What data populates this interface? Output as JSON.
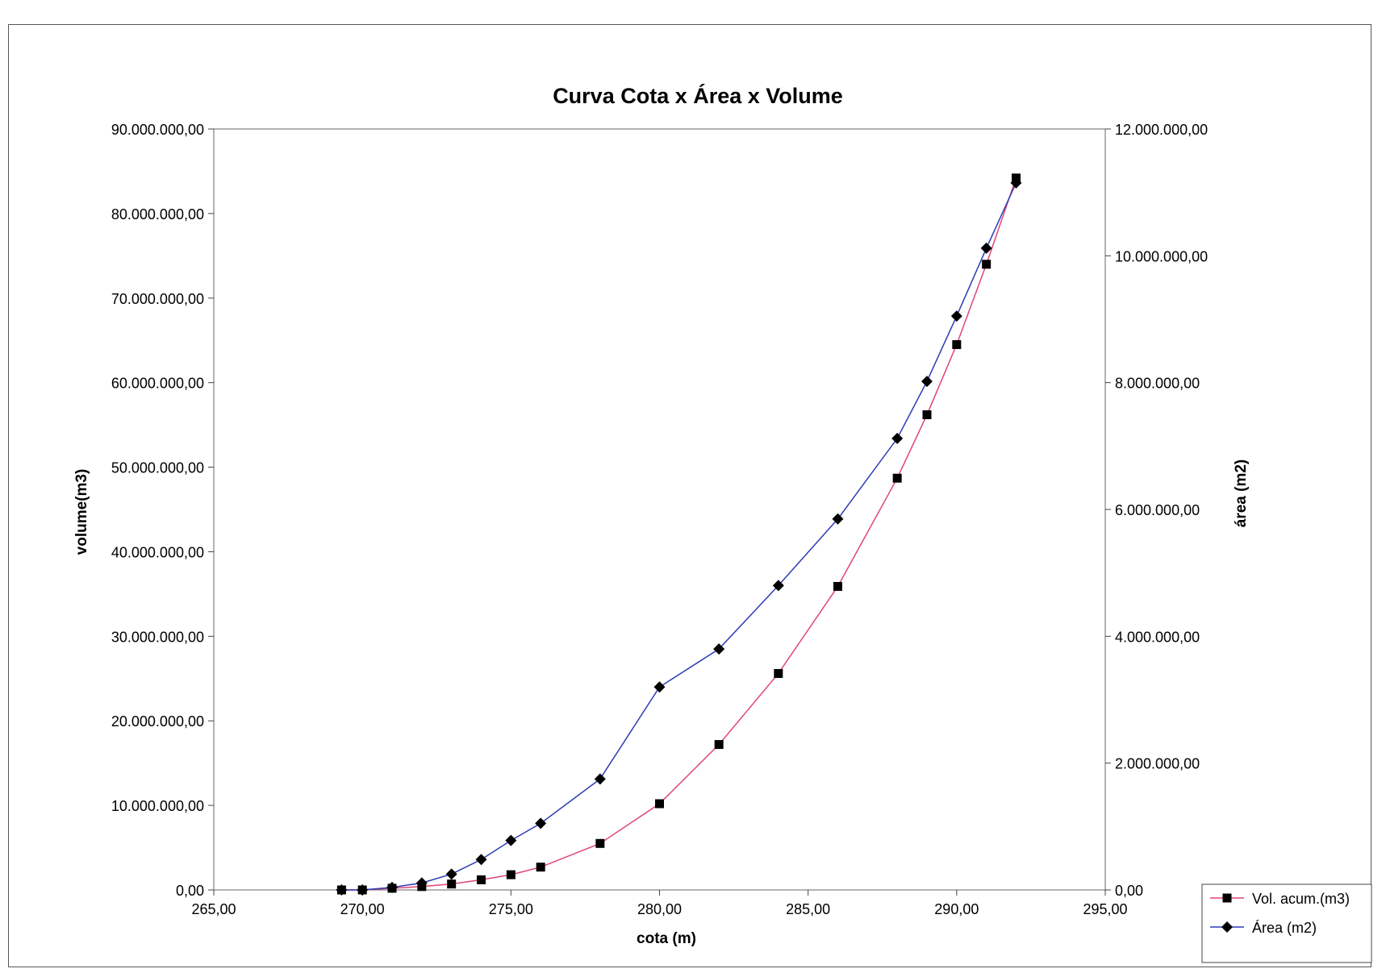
{
  "chart_data": {
    "type": "line",
    "title": "Curva Cota x Área x Volume",
    "xlabel": "cota (m)",
    "ylabel_left": "volume(m3)",
    "ylabel_right": "área (m2)",
    "xlim": [
      265,
      295
    ],
    "ylim_left": [
      0,
      90000000
    ],
    "ylim_right": [
      0,
      12000000
    ],
    "x_ticks": [
      "265,00",
      "270,00",
      "275,00",
      "280,00",
      "285,00",
      "290,00",
      "295,00"
    ],
    "y_left_ticks": [
      "0,00",
      "10.000.000,00",
      "20.000.000,00",
      "30.000.000,00",
      "40.000.000,00",
      "50.000.000,00",
      "60.000.000,00",
      "70.000.000,00",
      "80.000.000,00",
      "90.000.000,00"
    ],
    "y_right_ticks": [
      "0,00",
      "2.000.000,00",
      "4.000.000,00",
      "6.000.000,00",
      "8.000.000,00",
      "10.000.000,00",
      "12.000.000,00"
    ],
    "grid": false,
    "legend_position": "bottom-right",
    "series": [
      {
        "name": "Vol. acum.(m3)",
        "axis": "left",
        "marker": "square",
        "color": "#e0457a",
        "x": [
          269.3,
          270.0,
          271.0,
          272.0,
          273.0,
          274.0,
          275.0,
          276.0,
          278.0,
          280.0,
          282.0,
          284.0,
          286.0,
          288.0,
          289.0,
          290.0,
          291.0,
          292.0
        ],
        "values": [
          0,
          0,
          200000,
          400000,
          700000,
          1200000,
          1800000,
          2700000,
          5500000,
          10200000,
          17200000,
          25600000,
          35900000,
          48700000,
          56200000,
          64500000,
          74000000,
          84200000
        ]
      },
      {
        "name": "Área (m2)",
        "axis": "right",
        "marker": "diamond",
        "color": "#2b3bb5",
        "x": [
          269.3,
          270.0,
          271.0,
          272.0,
          273.0,
          274.0,
          275.0,
          276.0,
          278.0,
          280.0,
          282.0,
          284.0,
          286.0,
          288.0,
          289.0,
          290.0,
          291.0,
          292.0
        ],
        "values": [
          0,
          0,
          40000,
          110000,
          250000,
          480000,
          780000,
          1050000,
          1750000,
          3200000,
          3800000,
          4800000,
          5850000,
          7120000,
          8020000,
          9050000,
          10120000,
          11150000
        ]
      }
    ]
  }
}
